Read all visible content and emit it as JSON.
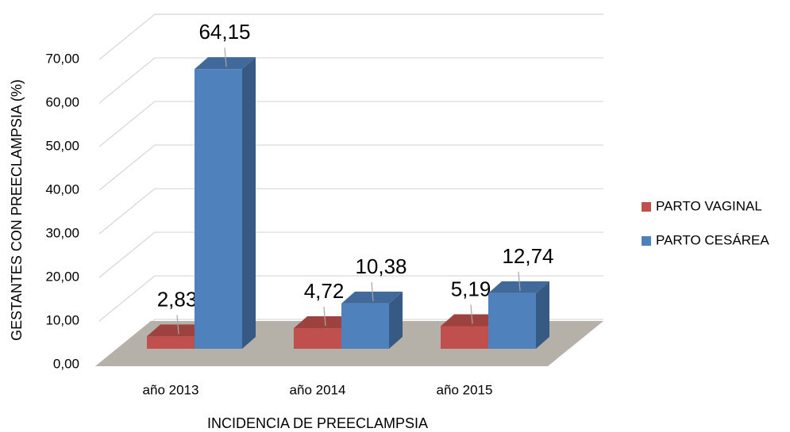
{
  "chart_data": {
    "type": "bar3d",
    "categories": [
      "año 2013",
      "año 2014",
      "año 2015"
    ],
    "series": [
      {
        "name": "PARTO VAGINAL",
        "color": "#c0504d",
        "values": [
          2.83,
          4.72,
          5.19
        ],
        "value_labels": [
          "2,83",
          "4,72",
          "5,19"
        ]
      },
      {
        "name": "PARTO CESÁREA",
        "color": "#4f81bd",
        "values": [
          64.15,
          10.38,
          12.74
        ],
        "value_labels": [
          "64,15",
          "10,38",
          "12,74"
        ]
      }
    ],
    "xlabel": "INCIDENCIA DE PREECLAMPSIA",
    "ylabel": "GESTANTES CON PREECLAMPSIA (%)",
    "ylim": [
      0,
      70
    ],
    "yticks": [
      {
        "value": 0,
        "label": "0,00"
      },
      {
        "value": 10,
        "label": "10,00"
      },
      {
        "value": 20,
        "label": "20,00"
      },
      {
        "value": 30,
        "label": "30,00"
      },
      {
        "value": 40,
        "label": "40,00"
      },
      {
        "value": 50,
        "label": "50,00"
      },
      {
        "value": 60,
        "label": "60,00"
      },
      {
        "value": 70,
        "label": "70,00"
      }
    ],
    "grid": true,
    "legend": "right"
  }
}
